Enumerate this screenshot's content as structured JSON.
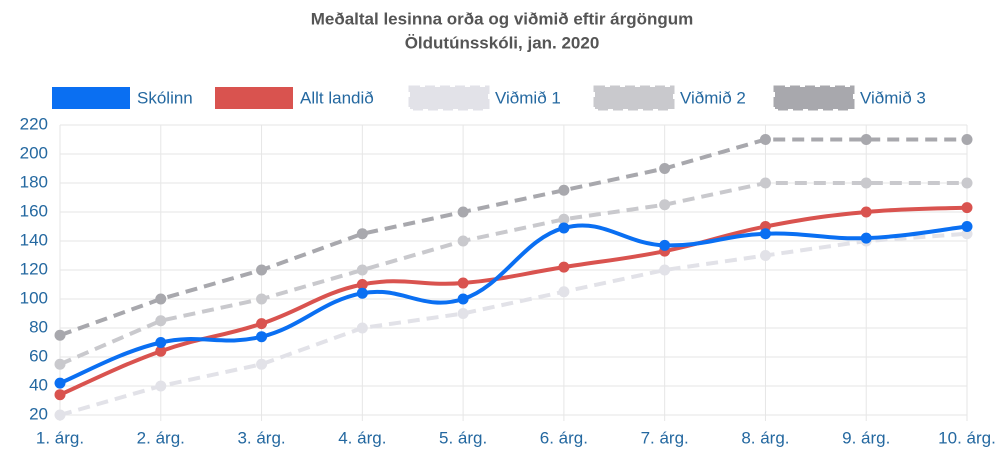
{
  "chart_data": {
    "type": "line",
    "title": "Meðaltal lesinna orða og viðmið eftir árgöngum",
    "subtitle": "Öldutúnsskóli, jan. 2020",
    "categories": [
      "1. árg.",
      "2. árg.",
      "3. árg.",
      "4. árg.",
      "5. árg.",
      "6. árg.",
      "7. árg.",
      "8. árg.",
      "9. árg.",
      "10. árg."
    ],
    "series": [
      {
        "name": "Skólinn",
        "color": "#0a6ff2",
        "dashed": false,
        "values": [
          42,
          70,
          74,
          104,
          100,
          149,
          137,
          145,
          142,
          150
        ]
      },
      {
        "name": "Allt landið",
        "color": "#d9534f",
        "dashed": false,
        "values": [
          34,
          64,
          83,
          110,
          111,
          122,
          133,
          150,
          160,
          163
        ]
      },
      {
        "name": "Viðmið 1",
        "color": "#e2e2e8",
        "dashed": true,
        "values": [
          20,
          40,
          55,
          80,
          90,
          105,
          120,
          130,
          140,
          145
        ]
      },
      {
        "name": "Viðmið 2",
        "color": "#c9c9cd",
        "dashed": true,
        "values": [
          55,
          85,
          100,
          120,
          140,
          155,
          165,
          180,
          180,
          180
        ]
      },
      {
        "name": "Viðmið 3",
        "color": "#a8a8ad",
        "dashed": true,
        "values": [
          75,
          100,
          120,
          145,
          160,
          175,
          190,
          210,
          210,
          210
        ]
      }
    ],
    "ylim": [
      20,
      220
    ],
    "yticks": [
      20,
      40,
      60,
      80,
      100,
      120,
      140,
      160,
      180,
      200,
      220
    ],
    "grid": true,
    "legend": "top"
  }
}
